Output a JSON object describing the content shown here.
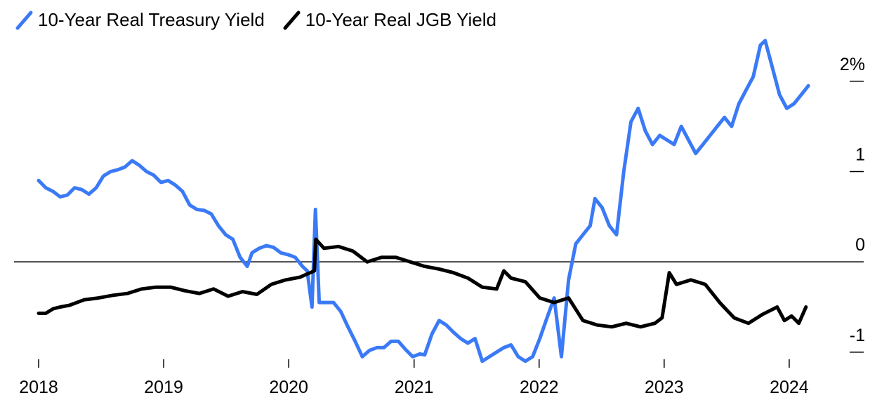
{
  "chart_data": {
    "type": "line",
    "title": "",
    "xlabel": "",
    "ylabel": "",
    "x_ticks": [
      "2018",
      "2019",
      "2020",
      "2021",
      "2022",
      "2023",
      "2024"
    ],
    "y_ticks": [
      "2%",
      "1",
      "0",
      "-1"
    ],
    "xlim": [
      "2018-01-01",
      "2024-03-15"
    ],
    "ylim": [
      -1.18,
      2.55
    ],
    "y_axis_position": "right",
    "zero_line": true,
    "grid": false,
    "legend_position": "top-left",
    "series": [
      {
        "name": "10-Year Real Treasury Yield",
        "color": "#3b7af6",
        "points": [
          [
            "2018-01-01",
            0.9
          ],
          [
            "2018-01-22",
            0.82
          ],
          [
            "2018-02-12",
            0.78
          ],
          [
            "2018-03-05",
            0.72
          ],
          [
            "2018-03-26",
            0.74
          ],
          [
            "2018-04-16",
            0.82
          ],
          [
            "2018-05-07",
            0.8
          ],
          [
            "2018-05-28",
            0.75
          ],
          [
            "2018-06-18",
            0.82
          ],
          [
            "2018-07-09",
            0.95
          ],
          [
            "2018-07-30",
            1.0
          ],
          [
            "2018-08-20",
            1.02
          ],
          [
            "2018-09-10",
            1.05
          ],
          [
            "2018-10-01",
            1.12
          ],
          [
            "2018-10-22",
            1.07
          ],
          [
            "2018-11-12",
            1.0
          ],
          [
            "2018-12-03",
            0.96
          ],
          [
            "2018-12-24",
            0.88
          ],
          [
            "2019-01-14",
            0.9
          ],
          [
            "2019-02-04",
            0.85
          ],
          [
            "2019-02-25",
            0.78
          ],
          [
            "2019-03-18",
            0.63
          ],
          [
            "2019-04-08",
            0.58
          ],
          [
            "2019-04-29",
            0.57
          ],
          [
            "2019-05-20",
            0.53
          ],
          [
            "2019-06-10",
            0.4
          ],
          [
            "2019-07-01",
            0.3
          ],
          [
            "2019-07-22",
            0.25
          ],
          [
            "2019-08-12",
            0.05
          ],
          [
            "2019-09-02",
            -0.05
          ],
          [
            "2019-09-16",
            0.1
          ],
          [
            "2019-10-07",
            0.15
          ],
          [
            "2019-10-28",
            0.18
          ],
          [
            "2019-11-18",
            0.16
          ],
          [
            "2019-12-09",
            0.1
          ],
          [
            "2019-12-30",
            0.08
          ],
          [
            "2020-01-20",
            0.05
          ],
          [
            "2020-02-10",
            -0.05
          ],
          [
            "2020-02-24",
            -0.1
          ],
          [
            "2020-03-09",
            -0.5
          ],
          [
            "2020-03-16",
            0.25
          ],
          [
            "2020-03-19",
            0.58
          ],
          [
            "2020-03-30",
            -0.45
          ],
          [
            "2020-04-20",
            -0.45
          ],
          [
            "2020-05-11",
            -0.45
          ],
          [
            "2020-06-01",
            -0.55
          ],
          [
            "2020-06-22",
            -0.72
          ],
          [
            "2020-07-13",
            -0.88
          ],
          [
            "2020-08-03",
            -1.05
          ],
          [
            "2020-08-24",
            -0.98
          ],
          [
            "2020-09-14",
            -0.95
          ],
          [
            "2020-10-05",
            -0.95
          ],
          [
            "2020-10-26",
            -0.88
          ],
          [
            "2020-11-16",
            -0.88
          ],
          [
            "2020-12-07",
            -0.97
          ],
          [
            "2020-12-28",
            -1.05
          ],
          [
            "2021-01-18",
            -1.02
          ],
          [
            "2021-02-01",
            -1.03
          ],
          [
            "2021-02-22",
            -0.8
          ],
          [
            "2021-03-15",
            -0.65
          ],
          [
            "2021-04-05",
            -0.7
          ],
          [
            "2021-04-26",
            -0.78
          ],
          [
            "2021-05-17",
            -0.85
          ],
          [
            "2021-06-07",
            -0.9
          ],
          [
            "2021-06-28",
            -0.85
          ],
          [
            "2021-07-19",
            -1.1
          ],
          [
            "2021-08-09",
            -1.05
          ],
          [
            "2021-08-30",
            -1.0
          ],
          [
            "2021-09-20",
            -0.95
          ],
          [
            "2021-10-11",
            -0.92
          ],
          [
            "2021-11-01",
            -1.05
          ],
          [
            "2021-11-22",
            -1.1
          ],
          [
            "2021-12-13",
            -1.05
          ],
          [
            "2022-01-03",
            -0.85
          ],
          [
            "2022-01-24",
            -0.62
          ],
          [
            "2022-02-14",
            -0.4
          ],
          [
            "2022-03-07",
            -1.05
          ],
          [
            "2022-03-28",
            -0.2
          ],
          [
            "2022-04-18",
            0.2
          ],
          [
            "2022-05-09",
            0.3
          ],
          [
            "2022-05-30",
            0.4
          ],
          [
            "2022-06-13",
            0.7
          ],
          [
            "2022-07-04",
            0.6
          ],
          [
            "2022-07-25",
            0.4
          ],
          [
            "2022-08-15",
            0.3
          ],
          [
            "2022-09-05",
            1.0
          ],
          [
            "2022-09-26",
            1.55
          ],
          [
            "2022-10-17",
            1.7
          ],
          [
            "2022-11-07",
            1.45
          ],
          [
            "2022-11-28",
            1.3
          ],
          [
            "2022-12-19",
            1.4
          ],
          [
            "2023-01-09",
            1.35
          ],
          [
            "2023-01-30",
            1.3
          ],
          [
            "2023-02-20",
            1.5
          ],
          [
            "2023-03-13",
            1.35
          ],
          [
            "2023-04-03",
            1.2
          ],
          [
            "2023-04-24",
            1.3
          ],
          [
            "2023-05-15",
            1.4
          ],
          [
            "2023-06-05",
            1.5
          ],
          [
            "2023-06-26",
            1.6
          ],
          [
            "2023-07-17",
            1.5
          ],
          [
            "2023-08-07",
            1.75
          ],
          [
            "2023-08-28",
            1.9
          ],
          [
            "2023-09-18",
            2.05
          ],
          [
            "2023-10-09",
            2.4
          ],
          [
            "2023-10-23",
            2.45
          ],
          [
            "2023-11-13",
            2.15
          ],
          [
            "2023-12-04",
            1.85
          ],
          [
            "2023-12-25",
            1.7
          ],
          [
            "2024-01-15",
            1.75
          ],
          [
            "2024-02-05",
            1.85
          ],
          [
            "2024-02-26",
            1.95
          ]
        ]
      },
      {
        "name": "10-Year Real JGB Yield",
        "color": "#000000",
        "points": [
          [
            "2018-01-01",
            -0.57
          ],
          [
            "2018-01-22",
            -0.57
          ],
          [
            "2018-02-12",
            -0.52
          ],
          [
            "2018-03-05",
            -0.5
          ],
          [
            "2018-04-02",
            -0.48
          ],
          [
            "2018-05-14",
            -0.42
          ],
          [
            "2018-06-25",
            -0.4
          ],
          [
            "2018-08-06",
            -0.37
          ],
          [
            "2018-09-17",
            -0.35
          ],
          [
            "2018-10-29",
            -0.3
          ],
          [
            "2018-12-10",
            -0.28
          ],
          [
            "2019-01-21",
            -0.28
          ],
          [
            "2019-03-04",
            -0.32
          ],
          [
            "2019-04-15",
            -0.35
          ],
          [
            "2019-05-27",
            -0.3
          ],
          [
            "2019-07-08",
            -0.38
          ],
          [
            "2019-08-19",
            -0.33
          ],
          [
            "2019-09-30",
            -0.36
          ],
          [
            "2019-11-11",
            -0.25
          ],
          [
            "2019-12-23",
            -0.2
          ],
          [
            "2020-02-03",
            -0.17
          ],
          [
            "2020-03-16",
            -0.1
          ],
          [
            "2020-03-20",
            0.25
          ],
          [
            "2020-04-13",
            0.15
          ],
          [
            "2020-05-25",
            0.17
          ],
          [
            "2020-07-06",
            0.12
          ],
          [
            "2020-08-17",
            0.0
          ],
          [
            "2020-09-28",
            0.05
          ],
          [
            "2020-11-09",
            0.05
          ],
          [
            "2020-12-21",
            0.0
          ],
          [
            "2021-02-01",
            -0.05
          ],
          [
            "2021-03-15",
            -0.08
          ],
          [
            "2021-04-26",
            -0.12
          ],
          [
            "2021-06-07",
            -0.18
          ],
          [
            "2021-07-19",
            -0.28
          ],
          [
            "2021-08-30",
            -0.3
          ],
          [
            "2021-09-20",
            -0.1
          ],
          [
            "2021-10-11",
            -0.18
          ],
          [
            "2021-11-22",
            -0.22
          ],
          [
            "2022-01-03",
            -0.4
          ],
          [
            "2022-02-14",
            -0.45
          ],
          [
            "2022-03-28",
            -0.4
          ],
          [
            "2022-05-09",
            -0.65
          ],
          [
            "2022-06-20",
            -0.7
          ],
          [
            "2022-08-01",
            -0.72
          ],
          [
            "2022-09-12",
            -0.68
          ],
          [
            "2022-10-24",
            -0.72
          ],
          [
            "2022-12-05",
            -0.68
          ],
          [
            "2022-12-26",
            -0.62
          ],
          [
            "2023-01-16",
            -0.12
          ],
          [
            "2023-02-06",
            -0.25
          ],
          [
            "2023-03-20",
            -0.2
          ],
          [
            "2023-05-01",
            -0.25
          ],
          [
            "2023-06-12",
            -0.45
          ],
          [
            "2023-07-24",
            -0.62
          ],
          [
            "2023-09-04",
            -0.68
          ],
          [
            "2023-10-16",
            -0.58
          ],
          [
            "2023-11-27",
            -0.5
          ],
          [
            "2023-12-18",
            -0.65
          ],
          [
            "2024-01-08",
            -0.6
          ],
          [
            "2024-01-29",
            -0.68
          ],
          [
            "2024-02-19",
            -0.5
          ]
        ]
      }
    ]
  }
}
